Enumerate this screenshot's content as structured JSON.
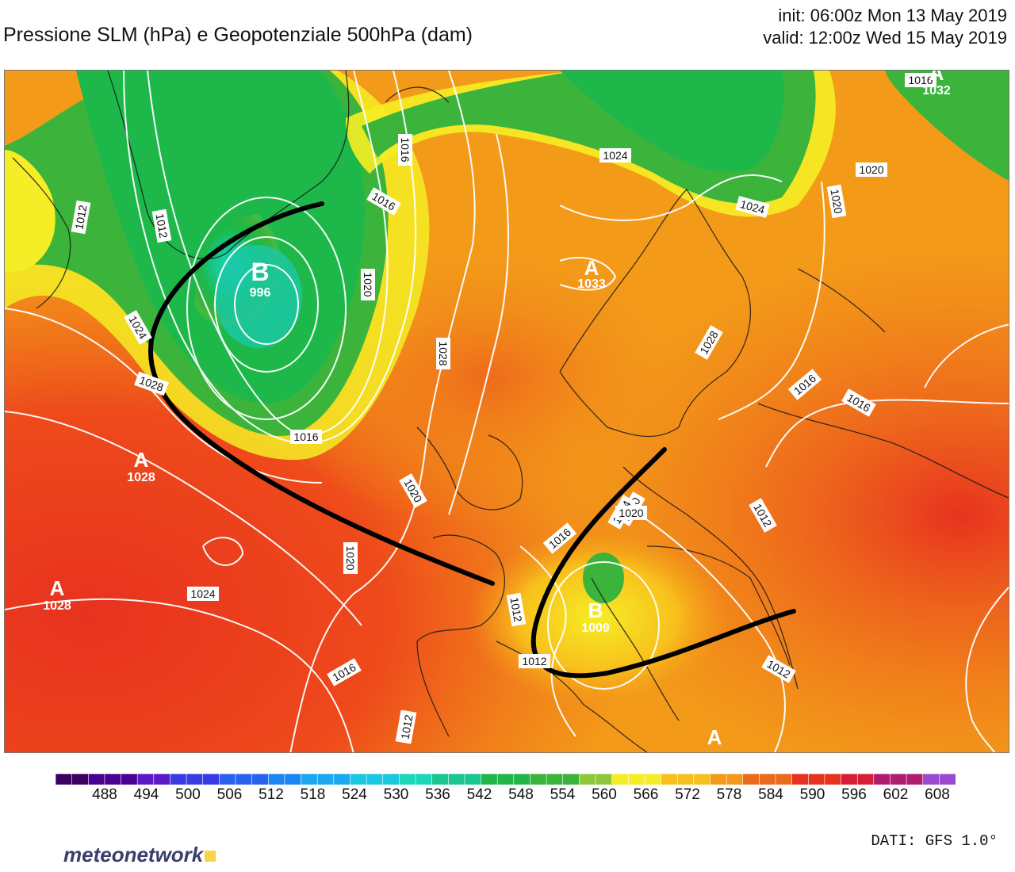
{
  "header": {
    "title": "Pressione SLM (hPa) e Geopotenziale 500hPa (dam)",
    "init": "init: 06:00z Mon 13 May 2019",
    "valid": "valid: 12:00z Wed 15 May 2019"
  },
  "map": {
    "pressure_centers": [
      {
        "letter": "B",
        "value": "996"
      },
      {
        "letter": "A",
        "value": "1028"
      },
      {
        "letter": "A",
        "value": "1028"
      },
      {
        "letter": "A",
        "value": "1032"
      },
      {
        "letter": "A",
        "value": "1033"
      },
      {
        "letter": "B",
        "value": "1009"
      },
      {
        "letter": "A",
        "value": ""
      }
    ],
    "isobar_labels": [
      "1012",
      "1016",
      "1020",
      "1024",
      "1028",
      "1016",
      "1012",
      "1016",
      "1024",
      "1020",
      "1020",
      "1024",
      "1016",
      "1020",
      "1016",
      "1012",
      "1028",
      "1024",
      "1020",
      "1028",
      "1016",
      "1016",
      "1012",
      "1012",
      "1024",
      "1020",
      "1020",
      "1016",
      "1012",
      "1012",
      "1012"
    ]
  },
  "colorbar": {
    "ticks": [
      "488",
      "494",
      "500",
      "506",
      "512",
      "518",
      "524",
      "530",
      "536",
      "542",
      "548",
      "554",
      "560",
      "566",
      "572",
      "578",
      "584",
      "590",
      "596",
      "602",
      "608"
    ],
    "colors": [
      "#3b0060",
      "#4a0090",
      "#5a18c8",
      "#3a3ae6",
      "#2a62f0",
      "#1a86f2",
      "#1aa9ee",
      "#1ac8e0",
      "#1ad8b8",
      "#18c890",
      "#1eb84a",
      "#3cb43c",
      "#8ec83a",
      "#f5ed25",
      "#f8c01c",
      "#f39a19",
      "#ee6a1b",
      "#e8321f",
      "#d81e36",
      "#b01c6e",
      "#9a4ad0"
    ]
  },
  "footer": {
    "brand": "meteonetwork",
    "source": "DATI: GFS 1.0°"
  }
}
